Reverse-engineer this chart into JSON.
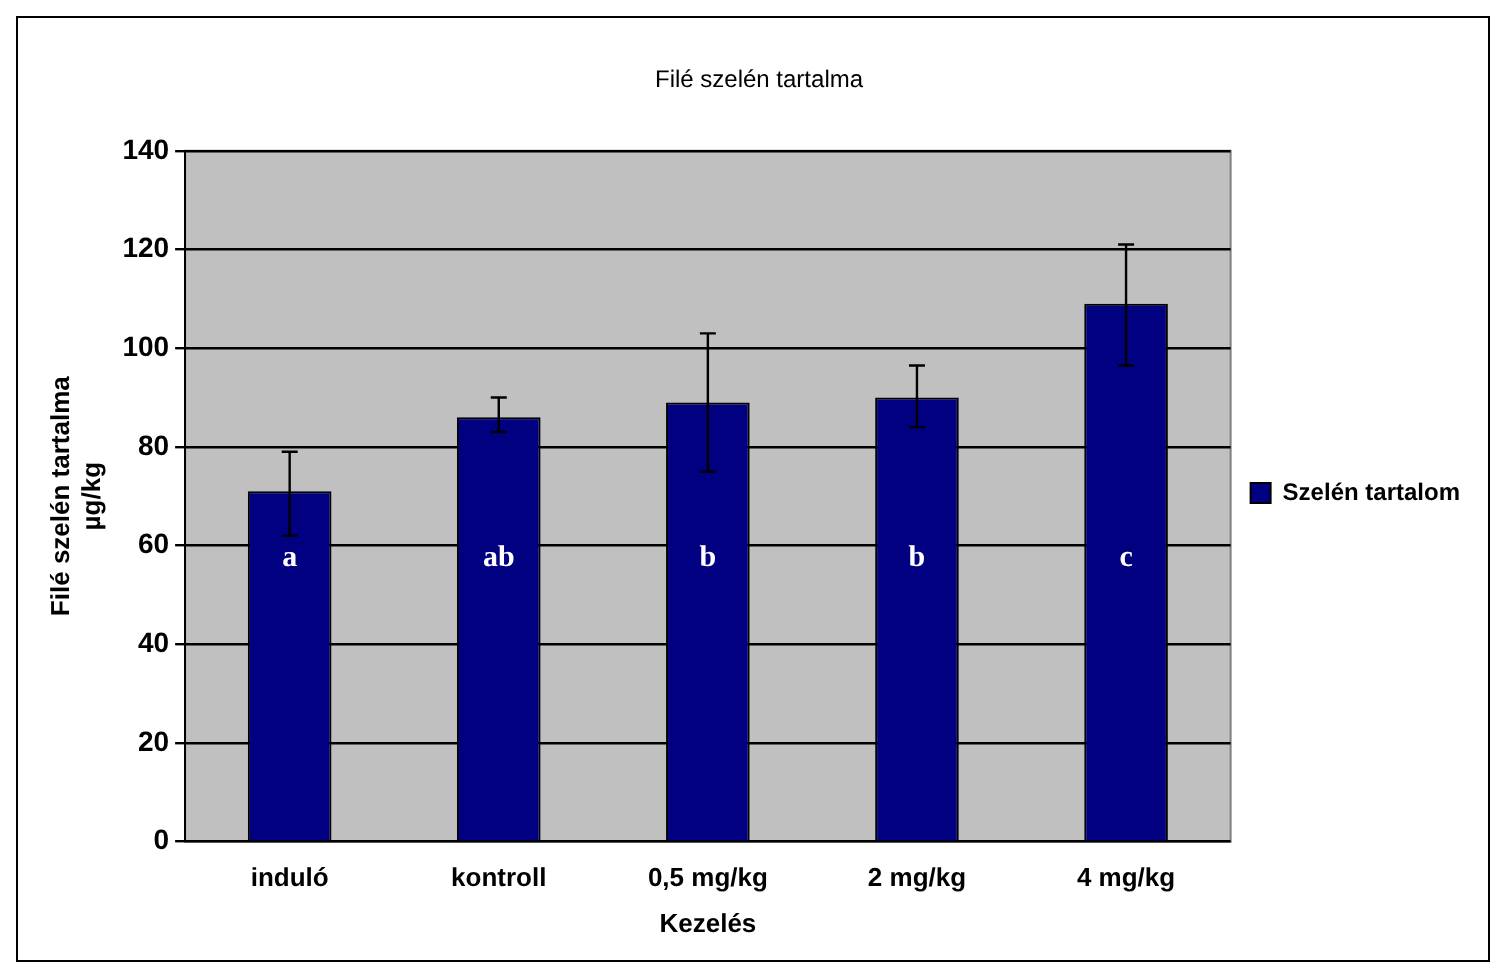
{
  "chart_data": {
    "type": "bar",
    "title": "Filé szelén tartalma",
    "xlabel": "Kezelés",
    "ylabel": "Filé szelén tartalma\nµg/kg",
    "categories": [
      "induló",
      "kontroll",
      "0,5 mg/kg",
      "2 mg/kg",
      "4 mg/kg"
    ],
    "series": [
      {
        "name": "Szelén tartalom",
        "color": "#000080",
        "values": [
          71,
          86,
          89,
          90,
          109
        ],
        "errors": [
          [
            62,
            79
          ],
          [
            83,
            90
          ],
          [
            75,
            103
          ],
          [
            84,
            96.5
          ],
          [
            96.5,
            121
          ]
        ]
      }
    ],
    "ylim": [
      0,
      140
    ],
    "yticks": [
      0,
      20,
      40,
      60,
      80,
      100,
      120,
      140
    ],
    "grid": "y",
    "legend": "right",
    "annotations": [
      "a",
      "ab",
      "b",
      "b",
      "c"
    ]
  }
}
